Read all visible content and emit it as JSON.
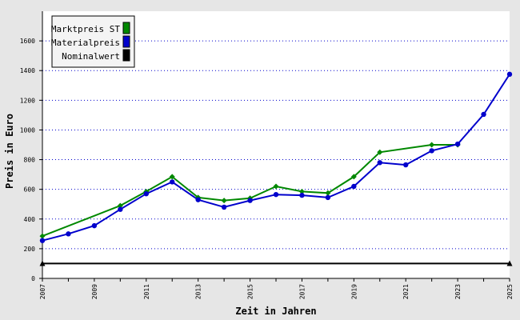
{
  "chart_data": {
    "type": "line",
    "title": "",
    "xlabel": "Zeit in Jahren",
    "ylabel": "Preis in Euro",
    "xlim": [
      2007,
      2025
    ],
    "ylim": [
      0,
      1800
    ],
    "x_ticks": [
      "2007",
      "2009",
      "2011",
      "2013",
      "2015",
      "2017",
      "2019",
      "2021",
      "2023",
      "2025"
    ],
    "y_ticks": [
      "0",
      "200",
      "400",
      "600",
      "800",
      "1000",
      "1200",
      "1400",
      "1600"
    ],
    "grid": true,
    "legend_position": "top-left",
    "series": [
      {
        "name": "Marktpreis ST",
        "color": "#008800",
        "marker": "diamond",
        "x": [
          2007,
          2010,
          2011,
          2012,
          2013,
          2014,
          2015,
          2016,
          2017,
          2018,
          2019,
          2020,
          2022,
          2023
        ],
        "y": [
          285,
          490,
          585,
          685,
          545,
          525,
          540,
          620,
          585,
          575,
          685,
          850,
          900,
          900
        ]
      },
      {
        "name": "Materialpreis",
        "color": "#0000cc",
        "marker": "circle",
        "x": [
          2007,
          2008,
          2009,
          2010,
          2011,
          2012,
          2013,
          2014,
          2015,
          2016,
          2017,
          2018,
          2019,
          2020,
          2021,
          2022,
          2023,
          2024,
          2025
        ],
        "y": [
          255,
          300,
          355,
          465,
          570,
          650,
          530,
          480,
          525,
          565,
          560,
          545,
          620,
          780,
          765,
          860,
          905,
          1105,
          1375
        ]
      },
      {
        "name": "Nominalwert",
        "color": "#000000",
        "marker": "triangle",
        "x": [
          2007,
          2025
        ],
        "y": [
          100,
          100
        ]
      }
    ]
  }
}
